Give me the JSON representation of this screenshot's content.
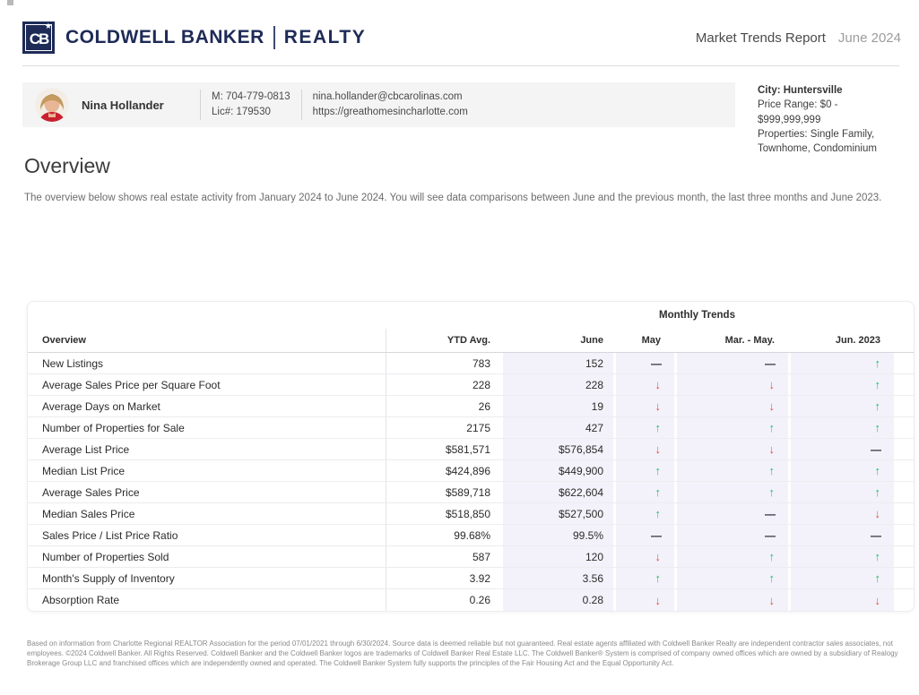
{
  "header": {
    "logo_text": "CB",
    "logo_star": "★",
    "brand_name": "COLDWELL BANKER",
    "brand_division": "REALTY",
    "report_title": "Market Trends Report",
    "report_date": "June 2024"
  },
  "agent": {
    "name": "Nina Hollander",
    "phone": "M: 704-779-0813",
    "license": "Lic#: 179530",
    "email": "nina.hollander@cbcarolinas.com",
    "website": "https://greathomesincharlotte.com"
  },
  "criteria": {
    "city": "City: Huntersville",
    "price_range_line1": "Price Range: $0 -",
    "price_range_line2": "$999,999,999",
    "properties_line1": "Properties: Single Family,",
    "properties_line2": "Townhome, Condominium"
  },
  "overview": {
    "title": "Overview",
    "description": "The overview below shows real estate activity from January 2024 to June 2024. You will see data comparisons between June and the previous month, the last three months and June 2023."
  },
  "table": {
    "group_header": "Monthly Trends",
    "columns": [
      "Overview",
      "YTD Avg.",
      "June",
      "May",
      "Mar. - May.",
      "Jun. 2023"
    ],
    "rows": [
      {
        "label": "New Listings",
        "ytd": "783",
        "june": "152",
        "may": "flat",
        "mar_may": "flat",
        "jun_2023": "up"
      },
      {
        "label": "Average Sales Price per Square Foot",
        "ytd": "228",
        "june": "228",
        "may": "down",
        "mar_may": "down",
        "jun_2023": "up"
      },
      {
        "label": "Average Days on Market",
        "ytd": "26",
        "june": "19",
        "may": "down",
        "mar_may": "down",
        "jun_2023": "up"
      },
      {
        "label": "Number of Properties for Sale",
        "ytd": "2175",
        "june": "427",
        "may": "up",
        "mar_may": "up",
        "jun_2023": "up"
      },
      {
        "label": "Average List Price",
        "ytd": "$581,571",
        "june": "$576,854",
        "may": "down",
        "mar_may": "down",
        "jun_2023": "flat"
      },
      {
        "label": "Median List Price",
        "ytd": "$424,896",
        "june": "$449,900",
        "may": "up",
        "mar_may": "up",
        "jun_2023": "up"
      },
      {
        "label": "Average Sales Price",
        "ytd": "$589,718",
        "june": "$622,604",
        "may": "up",
        "mar_may": "up",
        "jun_2023": "up"
      },
      {
        "label": "Median Sales Price",
        "ytd": "$518,850",
        "june": "$527,500",
        "may": "up",
        "mar_may": "flat",
        "jun_2023": "down"
      },
      {
        "label": "Sales Price / List Price Ratio",
        "ytd": "99.68%",
        "june": "99.5%",
        "may": "flat",
        "mar_may": "flat",
        "jun_2023": "flat"
      },
      {
        "label": "Number of Properties Sold",
        "ytd": "587",
        "june": "120",
        "may": "down",
        "mar_may": "up",
        "jun_2023": "up"
      },
      {
        "label": "Month's Supply of Inventory",
        "ytd": "3.92",
        "june": "3.56",
        "may": "up",
        "mar_may": "up",
        "jun_2023": "up"
      },
      {
        "label": "Absorption Rate",
        "ytd": "0.26",
        "june": "0.28",
        "may": "down",
        "mar_may": "down",
        "jun_2023": "down"
      }
    ],
    "trend_glyphs": {
      "up": "↑",
      "down": "↓",
      "flat": "—"
    }
  },
  "colors": {
    "brand_navy": "#1e2b57",
    "trend_up": "#1fbf6e",
    "trend_down": "#e25050",
    "trend_flat": "#272b36",
    "column_highlight": "#f3f2fa"
  },
  "footer": {
    "disclaimer": "Based on information from Charlotte Regional REALTOR Association for the period 07/01/2021 through 6/30/2024. Source data is deemed reliable but not guaranteed. Real estate agents affiliated with Coldwell Banker Realty are independent contractor sales associates, not employees. ©2024 Coldwell Banker. All Rights Reserved. Coldwell Banker and the Coldwell Banker logos are trademarks of Coldwell Banker Real Estate LLC. The Coldwell Banker® System is comprised of company owned offices which are owned by a subsidiary of Realogy Brokerage Group LLC and franchised offices which are independently owned and operated. The Coldwell Banker System fully supports the principles of the Fair Housing Act and the Equal Opportunity Act."
  }
}
